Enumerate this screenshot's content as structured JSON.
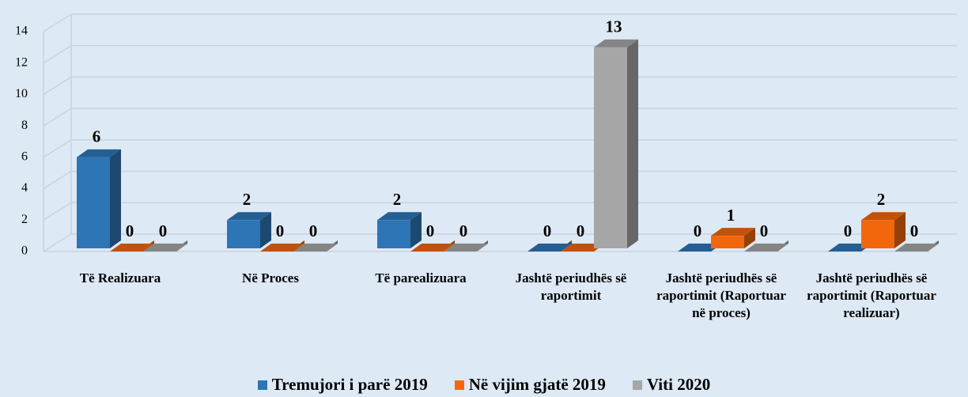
{
  "chart_data": {
    "type": "bar3d",
    "categories": [
      "Të Realizuara",
      "Në Proces",
      "Të parealizuara",
      "Jashtë periudhës së raportimit",
      "Jashtë periudhës së raportimit (Raportuar në proces)",
      "Jashtë periudhës së raportimit (Raportuar realizuar)"
    ],
    "series": [
      {
        "name": "Tremujori i parë 2019",
        "color": "#2e75b6",
        "values": [
          6,
          2,
          2,
          0,
          0,
          0
        ]
      },
      {
        "name": "Në vijim gjatë 2019",
        "color": "#f2670c",
        "values": [
          0,
          0,
          0,
          0,
          1,
          2
        ]
      },
      {
        "name": "Viti 2020",
        "color": "#a6a6a6",
        "values": [
          0,
          0,
          0,
          13,
          0,
          0
        ]
      }
    ],
    "ylim": [
      0,
      14
    ],
    "yticks": [
      0,
      2,
      4,
      6,
      8,
      10,
      12,
      14
    ],
    "grid": true,
    "legend": "bottom"
  }
}
